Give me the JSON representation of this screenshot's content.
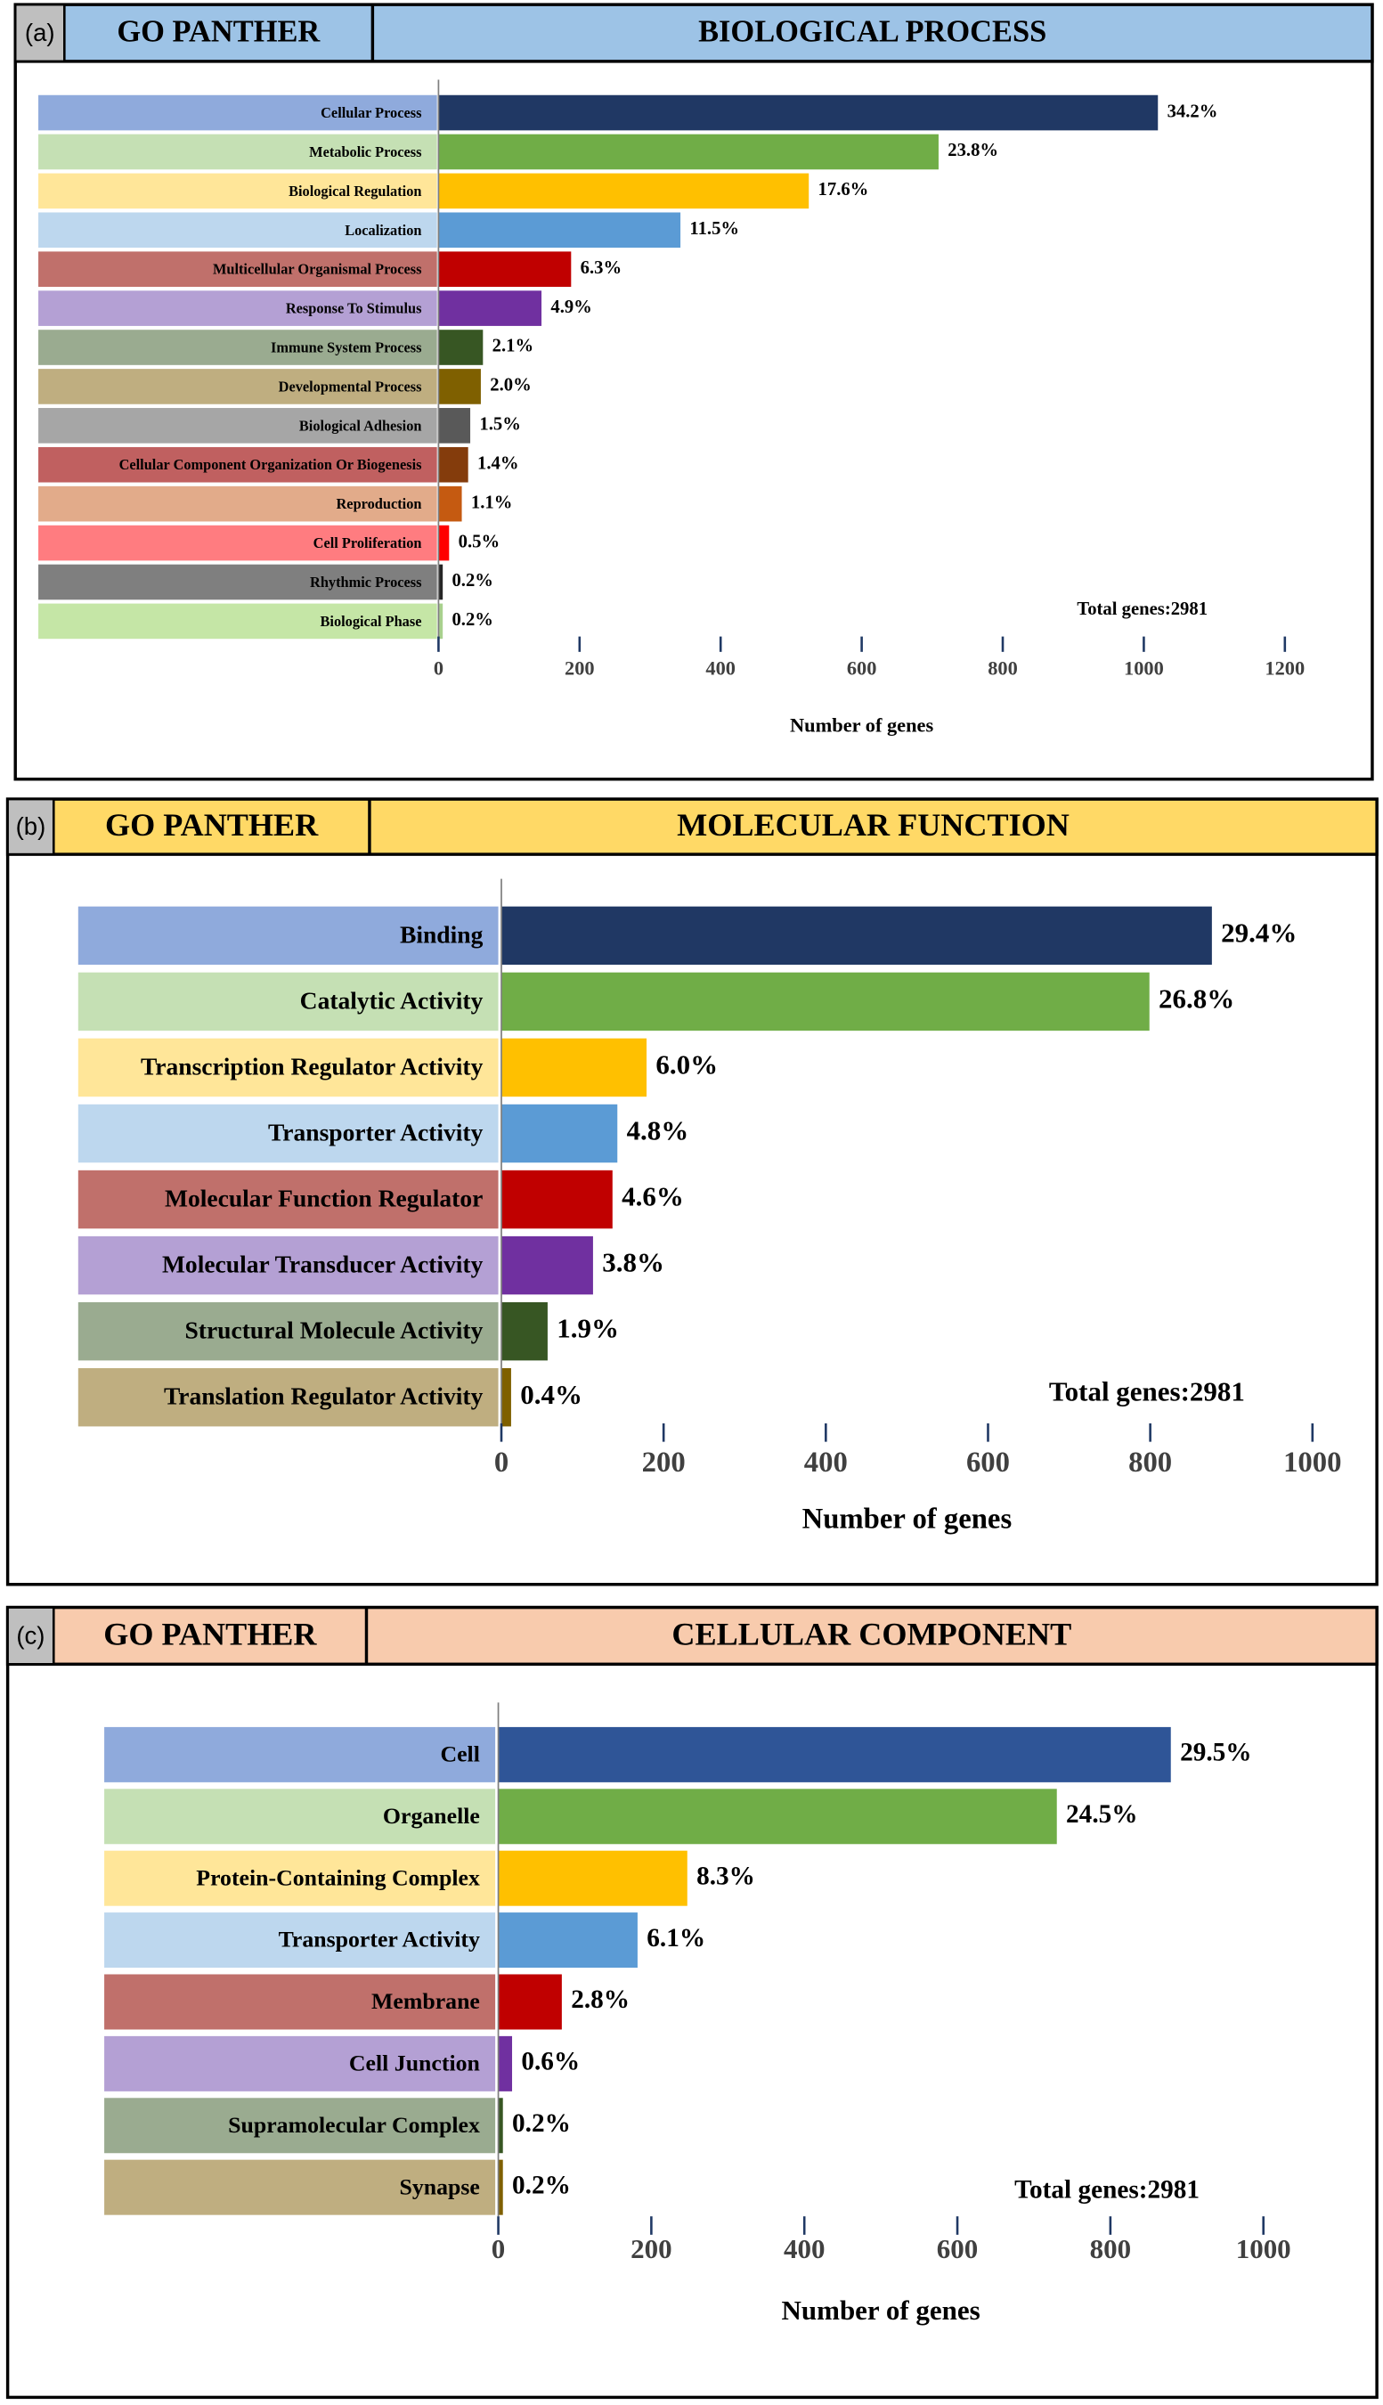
{
  "chart_data": [
    {
      "type": "bar",
      "panel": "(a)",
      "header": "GO PANTHER",
      "title": "BIOLOGICAL PROCESS",
      "header_color": "#9dc3e6",
      "categories": [
        "Cellular Process",
        "Metabolic Process",
        "Biological Regulation",
        "Localization",
        "Multicellular Organismal Process",
        "Response To Stimulus",
        "Immune System Process",
        "Developmental Process",
        "Biological Adhesion",
        "Cellular Component Organization Or Biogenesis",
        "Reproduction",
        "Cell Proliferation",
        "Rhythmic Process",
        "Biological Phase"
      ],
      "values": [
        1020,
        709,
        525,
        343,
        188,
        146,
        63,
        60,
        45,
        42,
        33,
        15,
        6,
        6
      ],
      "value_labels": [
        "34.2%",
        "23.8%",
        "17.6%",
        "11.5%",
        "6.3%",
        "4.9%",
        "2.1%",
        "2.0%",
        "1.5%",
        "1.4%",
        "1.1%",
        "0.5%",
        "0.2%",
        "0.2%"
      ],
      "colors": [
        "#203864",
        "#70ad47",
        "#ffc000",
        "#5b9bd5",
        "#c00000",
        "#7030a0",
        "#375623",
        "#7f6000",
        "#595959",
        "#843c0c",
        "#c55a11",
        "#ff0000",
        "#262626",
        "#a9d18e"
      ],
      "label_colors": [
        "#8faadc",
        "#c5e0b4",
        "#ffe699",
        "#bdd7ee",
        "#c0706b",
        "#b4a0d4",
        "#9aab90",
        "#bfae80",
        "#a6a6a6",
        "#c06060",
        "#e2ab8a",
        "#ff7c80",
        "#7f7f7f",
        "#c5e6a6"
      ],
      "xlim": [
        0,
        1200
      ],
      "xticks": [
        0,
        200,
        400,
        600,
        800,
        1000,
        1200
      ],
      "xlabel": "Number of genes",
      "annotation": "Total genes:2981"
    },
    {
      "type": "bar",
      "panel": "(b)",
      "header": "GO PANTHER",
      "title": "MOLECULAR FUNCTION",
      "header_color": "#ffd966",
      "categories": [
        "Binding",
        "Catalytic Activity",
        "Transcription Regulator Activity",
        "Transporter Activity",
        "Molecular Function Regulator",
        "Molecular Transducer Activity",
        "Structural Molecule Activity",
        "Translation Regulator Activity"
      ],
      "values": [
        876,
        799,
        179,
        143,
        137,
        113,
        57,
        12
      ],
      "value_labels": [
        "29.4%",
        "26.8%",
        "6.0%",
        "4.8%",
        "4.6%",
        "3.8%",
        "1.9%",
        "0.4%"
      ],
      "colors": [
        "#203864",
        "#70ad47",
        "#ffc000",
        "#5b9bd5",
        "#c00000",
        "#7030a0",
        "#375623",
        "#7f6000"
      ],
      "label_colors": [
        "#8faadc",
        "#c5e0b4",
        "#ffe699",
        "#bdd7ee",
        "#c0706b",
        "#b4a0d4",
        "#9aab90",
        "#bfae80"
      ],
      "xlim": [
        0,
        1000
      ],
      "xticks": [
        0,
        200,
        400,
        600,
        800,
        1000
      ],
      "xlabel": "Number of genes",
      "annotation": "Total genes:2981"
    },
    {
      "type": "bar",
      "panel": "(c)",
      "header": "GO PANTHER",
      "title": "CELLULAR COMPONENT",
      "header_color": "#f8cbad",
      "categories": [
        "Cell",
        "Organelle",
        "Protein-Containing Complex",
        "Transporter Activity",
        "Membrane",
        "Cell Junction",
        "Supramolecular Complex",
        "Synapse"
      ],
      "values": [
        879,
        730,
        247,
        182,
        83,
        18,
        6,
        6
      ],
      "value_labels": [
        "29.5%",
        "24.5%",
        "8.3%",
        "6.1%",
        "2.8%",
        "0.6%",
        "0.2%",
        "0.2%"
      ],
      "colors": [
        "#2f5597",
        "#70ad47",
        "#ffc000",
        "#5b9bd5",
        "#c00000",
        "#7030a0",
        "#375623",
        "#7f6000"
      ],
      "label_colors": [
        "#8faadc",
        "#c5e0b4",
        "#ffe699",
        "#bdd7ee",
        "#c0706b",
        "#b4a0d4",
        "#9aab90",
        "#bfae80"
      ],
      "xlim": [
        0,
        1000
      ],
      "xticks": [
        0,
        200,
        400,
        600,
        800,
        1000
      ],
      "xlabel": "Number of genes",
      "annotation": "Total genes:2981"
    }
  ]
}
